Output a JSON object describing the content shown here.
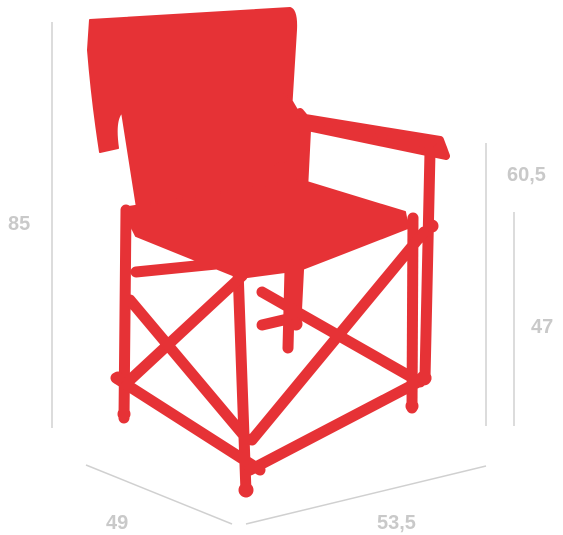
{
  "diagram": {
    "subject_color": "#e63236",
    "dimension_color": "#c9c9c9",
    "dimensions": {
      "overall_height": "85",
      "armrest_height": "60,5",
      "seat_height": "47",
      "depth": "49",
      "width": "53,5"
    }
  }
}
